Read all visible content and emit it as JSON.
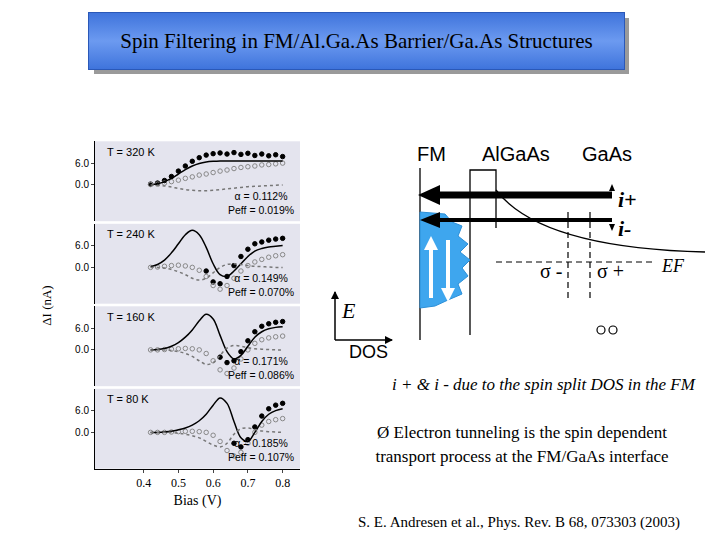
{
  "chart_data": {
    "type": "line",
    "x_label": "Bias (V)",
    "y_label": "ΔI (nA)",
    "grid": false,
    "xlim": [
      0.26,
      0.85
    ],
    "xticks": [
      0.4,
      0.5,
      0.6,
      0.7,
      0.8
    ],
    "x": [
      0.42,
      0.44,
      0.46,
      0.48,
      0.5,
      0.52,
      0.54,
      0.56,
      0.58,
      0.6,
      0.62,
      0.64,
      0.66,
      0.68,
      0.7,
      0.72,
      0.74,
      0.76,
      0.78,
      0.8
    ],
    "panels": [
      {
        "title": "T = 320 K",
        "annotations": [
          "α = 0.112%",
          "Peff = 0.019%"
        ],
        "ylim": [
          -10,
          12
        ],
        "yticks": [
          {
            "value": 0,
            "label": "0.0"
          },
          {
            "value": 6,
            "label": "6.0"
          }
        ],
        "series": [
          {
            "type": "scatter",
            "marker": "circle",
            "color": "#000000",
            "values": [
              0.2,
              0.5,
              1.2,
              2.3,
              3.8,
              5.2,
              6.5,
              7.5,
              8.2,
              8.6,
              8.8,
              8.5,
              8.9,
              8.4,
              8.7,
              8.1,
              8.5,
              8.0,
              8.3,
              7.8
            ]
          },
          {
            "type": "scatter",
            "marker": "circle-open",
            "color": "#888888",
            "values": [
              0.1,
              0.2,
              0.5,
              0.9,
              1.3,
              1.8,
              2.2,
              2.7,
              3.0,
              3.4,
              3.8,
              4.1,
              4.5,
              4.8,
              5.0,
              5.2,
              5.5,
              5.6,
              5.8,
              6.0
            ]
          },
          {
            "type": "line",
            "line_style": "solid",
            "color": "#000000",
            "values": [
              0.0,
              0.3,
              0.9,
              1.8,
              3.0,
              4.2,
              5.2,
              5.9,
              6.3,
              6.5,
              6.6,
              6.6,
              6.6,
              6.6,
              6.6,
              6.6,
              6.6,
              6.6,
              6.6,
              6.6
            ]
          },
          {
            "type": "line",
            "line_style": "dot",
            "color": "#777777",
            "values": [
              0,
              -0.1,
              -0.3,
              -0.6,
              -1.0,
              -1.3,
              -1.5,
              -1.6,
              -1.6,
              -1.5,
              -1.3,
              -1.1,
              -0.9,
              -0.7,
              -0.5,
              -0.4,
              -0.3,
              -0.2,
              -0.1,
              0
            ]
          }
        ]
      },
      {
        "title": "T = 240 K",
        "annotations": [
          "α = 0.149%",
          "Peff = 0.070%"
        ],
        "ylim": [
          -10,
          12
        ],
        "yticks": [
          {
            "value": 0,
            "label": "0.0"
          },
          {
            "value": 6,
            "label": "6.0"
          }
        ],
        "series": [
          {
            "type": "scatter",
            "marker": "circle",
            "color": "#000000",
            "values": [
              null,
              null,
              null,
              null,
              null,
              null,
              null,
              null,
              -1.0,
              -4.0,
              -4.5,
              -2.5,
              0.5,
              3.0,
              5.0,
              6.5,
              7.0,
              7.5,
              7.8,
              8.0
            ]
          },
          {
            "type": "scatter",
            "marker": "circle-open",
            "color": "#888888",
            "values": [
              0,
              0.1,
              0.3,
              0.5,
              0.6,
              0.4,
              0,
              -0.8,
              -2.5,
              -5.0,
              -6.0,
              -5.0,
              -3.0,
              -1.0,
              0.5,
              1.5,
              2.2,
              2.8,
              3.2,
              3.5
            ]
          },
          {
            "type": "line",
            "line_style": "solid",
            "color": "#000000",
            "values": [
              0.2,
              0.8,
              2.0,
              4.0,
              6.5,
              9.0,
              10.2,
              9.0,
              5.5,
              1.0,
              -2.0,
              -2.5,
              -1.0,
              1.0,
              3.0,
              4.5,
              5.2,
              5.6,
              5.8,
              6.0
            ]
          },
          {
            "type": "line",
            "line_style": "dot",
            "color": "#777777",
            "values": [
              0,
              0,
              -0.2,
              -0.6,
              -1.2,
              -2.0,
              -3.0,
              -3.5,
              -3.0,
              -1.5,
              0,
              0.8,
              1.0,
              0.8,
              0.5,
              0.3,
              0.2,
              0.1,
              0,
              0
            ]
          }
        ]
      },
      {
        "title": "T = 160 K",
        "annotations": [
          "α = 0.171%",
          "Peff = 0.086%"
        ],
        "ylim": [
          -10,
          12
        ],
        "yticks": [
          {
            "value": 0,
            "label": "0.0"
          },
          {
            "value": 6,
            "label": "6.0"
          }
        ],
        "series": [
          {
            "type": "scatter",
            "marker": "circle",
            "color": "#000000",
            "values": [
              null,
              null,
              null,
              null,
              null,
              null,
              null,
              null,
              null,
              null,
              -2.0,
              -3.5,
              -3.0,
              -0.5,
              2.5,
              5.0,
              6.5,
              7.2,
              7.6,
              7.8
            ]
          },
          {
            "type": "scatter",
            "marker": "circle-open",
            "color": "#888888",
            "values": [
              0,
              0,
              0.1,
              0.2,
              0.3,
              0.4,
              0.3,
              0,
              -1.0,
              -3.0,
              -5.5,
              -6.5,
              -5.0,
              -2.5,
              0,
              1.8,
              2.8,
              3.3,
              3.6,
              3.8
            ]
          },
          {
            "type": "line",
            "line_style": "solid",
            "color": "#000000",
            "values": [
              0,
              0.1,
              0.4,
              1.0,
              2.0,
              3.5,
              5.5,
              8.0,
              9.8,
              8.5,
              4.0,
              -0.5,
              -2.5,
              -1.5,
              1.0,
              3.5,
              5.0,
              5.8,
              6.2,
              6.4
            ]
          },
          {
            "type": "line",
            "line_style": "dot",
            "color": "#777777",
            "values": [
              0,
              0,
              0,
              -0.2,
              -0.5,
              -1.0,
              -1.8,
              -3.0,
              -4.0,
              -3.5,
              -1.5,
              0.5,
              1.2,
              1.0,
              0.6,
              0.3,
              0.2,
              0.1,
              0,
              0
            ]
          }
        ]
      },
      {
        "title": "T = 80 K",
        "annotations": [
          "α = 0.185%",
          "Peff = 0.107%"
        ],
        "ylim": [
          -10,
          12
        ],
        "yticks": [
          {
            "value": 0,
            "label": "0.0"
          },
          {
            "value": 6,
            "label": "6.0"
          }
        ],
        "series": [
          {
            "type": "scatter",
            "marker": "circle",
            "color": "#000000",
            "values": [
              null,
              null,
              null,
              null,
              null,
              null,
              null,
              null,
              null,
              null,
              null,
              null,
              -3.0,
              -4.0,
              -2.0,
              1.5,
              4.5,
              6.5,
              7.5,
              8.0
            ]
          },
          {
            "type": "scatter",
            "marker": "circle-open",
            "color": "#888888",
            "values": [
              0,
              0,
              0,
              0.1,
              0.2,
              0.3,
              0.3,
              0.2,
              0,
              -0.8,
              -2.5,
              -5.0,
              -6.5,
              -5.5,
              -3.0,
              0,
              2.0,
              3.0,
              3.5,
              3.8
            ]
          },
          {
            "type": "line",
            "line_style": "solid",
            "color": "#000000",
            "values": [
              0,
              0,
              0.1,
              0.3,
              0.7,
              1.2,
              2.0,
              3.2,
              5.0,
              7.5,
              9.5,
              8.0,
              3.0,
              -1.5,
              -2.5,
              0,
              3.0,
              5.0,
              6.0,
              6.5
            ]
          },
          {
            "type": "line",
            "line_style": "dot",
            "color": "#777777",
            "values": [
              0,
              0,
              0,
              0,
              -0.2,
              -0.5,
              -0.9,
              -1.5,
              -2.5,
              -3.5,
              -4.0,
              -3.0,
              -0.5,
              1.0,
              1.2,
              0.8,
              0.4,
              0.2,
              0.1,
              0
            ]
          }
        ]
      }
    ]
  },
  "slide": {
    "title": "Spin Filtering in FM/Al.Ga.As Barrier/Ga.As Structures",
    "diagram": {
      "fm": "FM",
      "barrier": "AlGaAs",
      "semiconductor": "GaAs",
      "current_plus": "i+",
      "current_minus": "i-",
      "sigma_minus": "σ -",
      "sigma_plus": "σ +",
      "fermi": "EF",
      "energy": "E",
      "dos": "DOS"
    },
    "caption": "i + & i - due to the spin split DOS in the FM",
    "bullet": [
      "Ø Electron tunneling is the spin dependent",
      "transport process at the FM/GaAs interface"
    ],
    "citation": "S. E. Andresen et al., Phys. Rev. B 68, 073303 (2003)"
  }
}
